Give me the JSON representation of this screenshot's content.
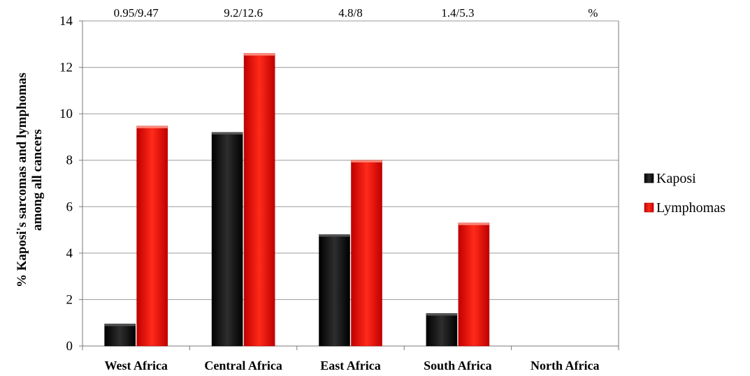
{
  "chart_data": {
    "type": "bar",
    "title": "",
    "xlabel": "",
    "ylabel": "% Kaposi's sarcomas and lymphomas among all cancers",
    "ylim": [
      0,
      14
    ],
    "yticks": [
      0,
      2,
      4,
      6,
      8,
      10,
      12,
      14
    ],
    "grid": true,
    "legend_position": "right",
    "categories": [
      "West Africa",
      "Central Africa",
      "East Africa",
      "South Africa",
      "North Africa"
    ],
    "series": [
      {
        "name": "Kaposi",
        "color": "#111111",
        "values": [
          0.95,
          9.2,
          4.8,
          1.4,
          0
        ]
      },
      {
        "name": "Lymphomas",
        "color": "#e8100c",
        "values": [
          9.47,
          12.6,
          8,
          5.3,
          0
        ]
      }
    ],
    "top_annotations": [
      "0.95/9.47",
      "9.2/12.6",
      "4.8/8",
      "1.4/5.3",
      "%"
    ]
  }
}
